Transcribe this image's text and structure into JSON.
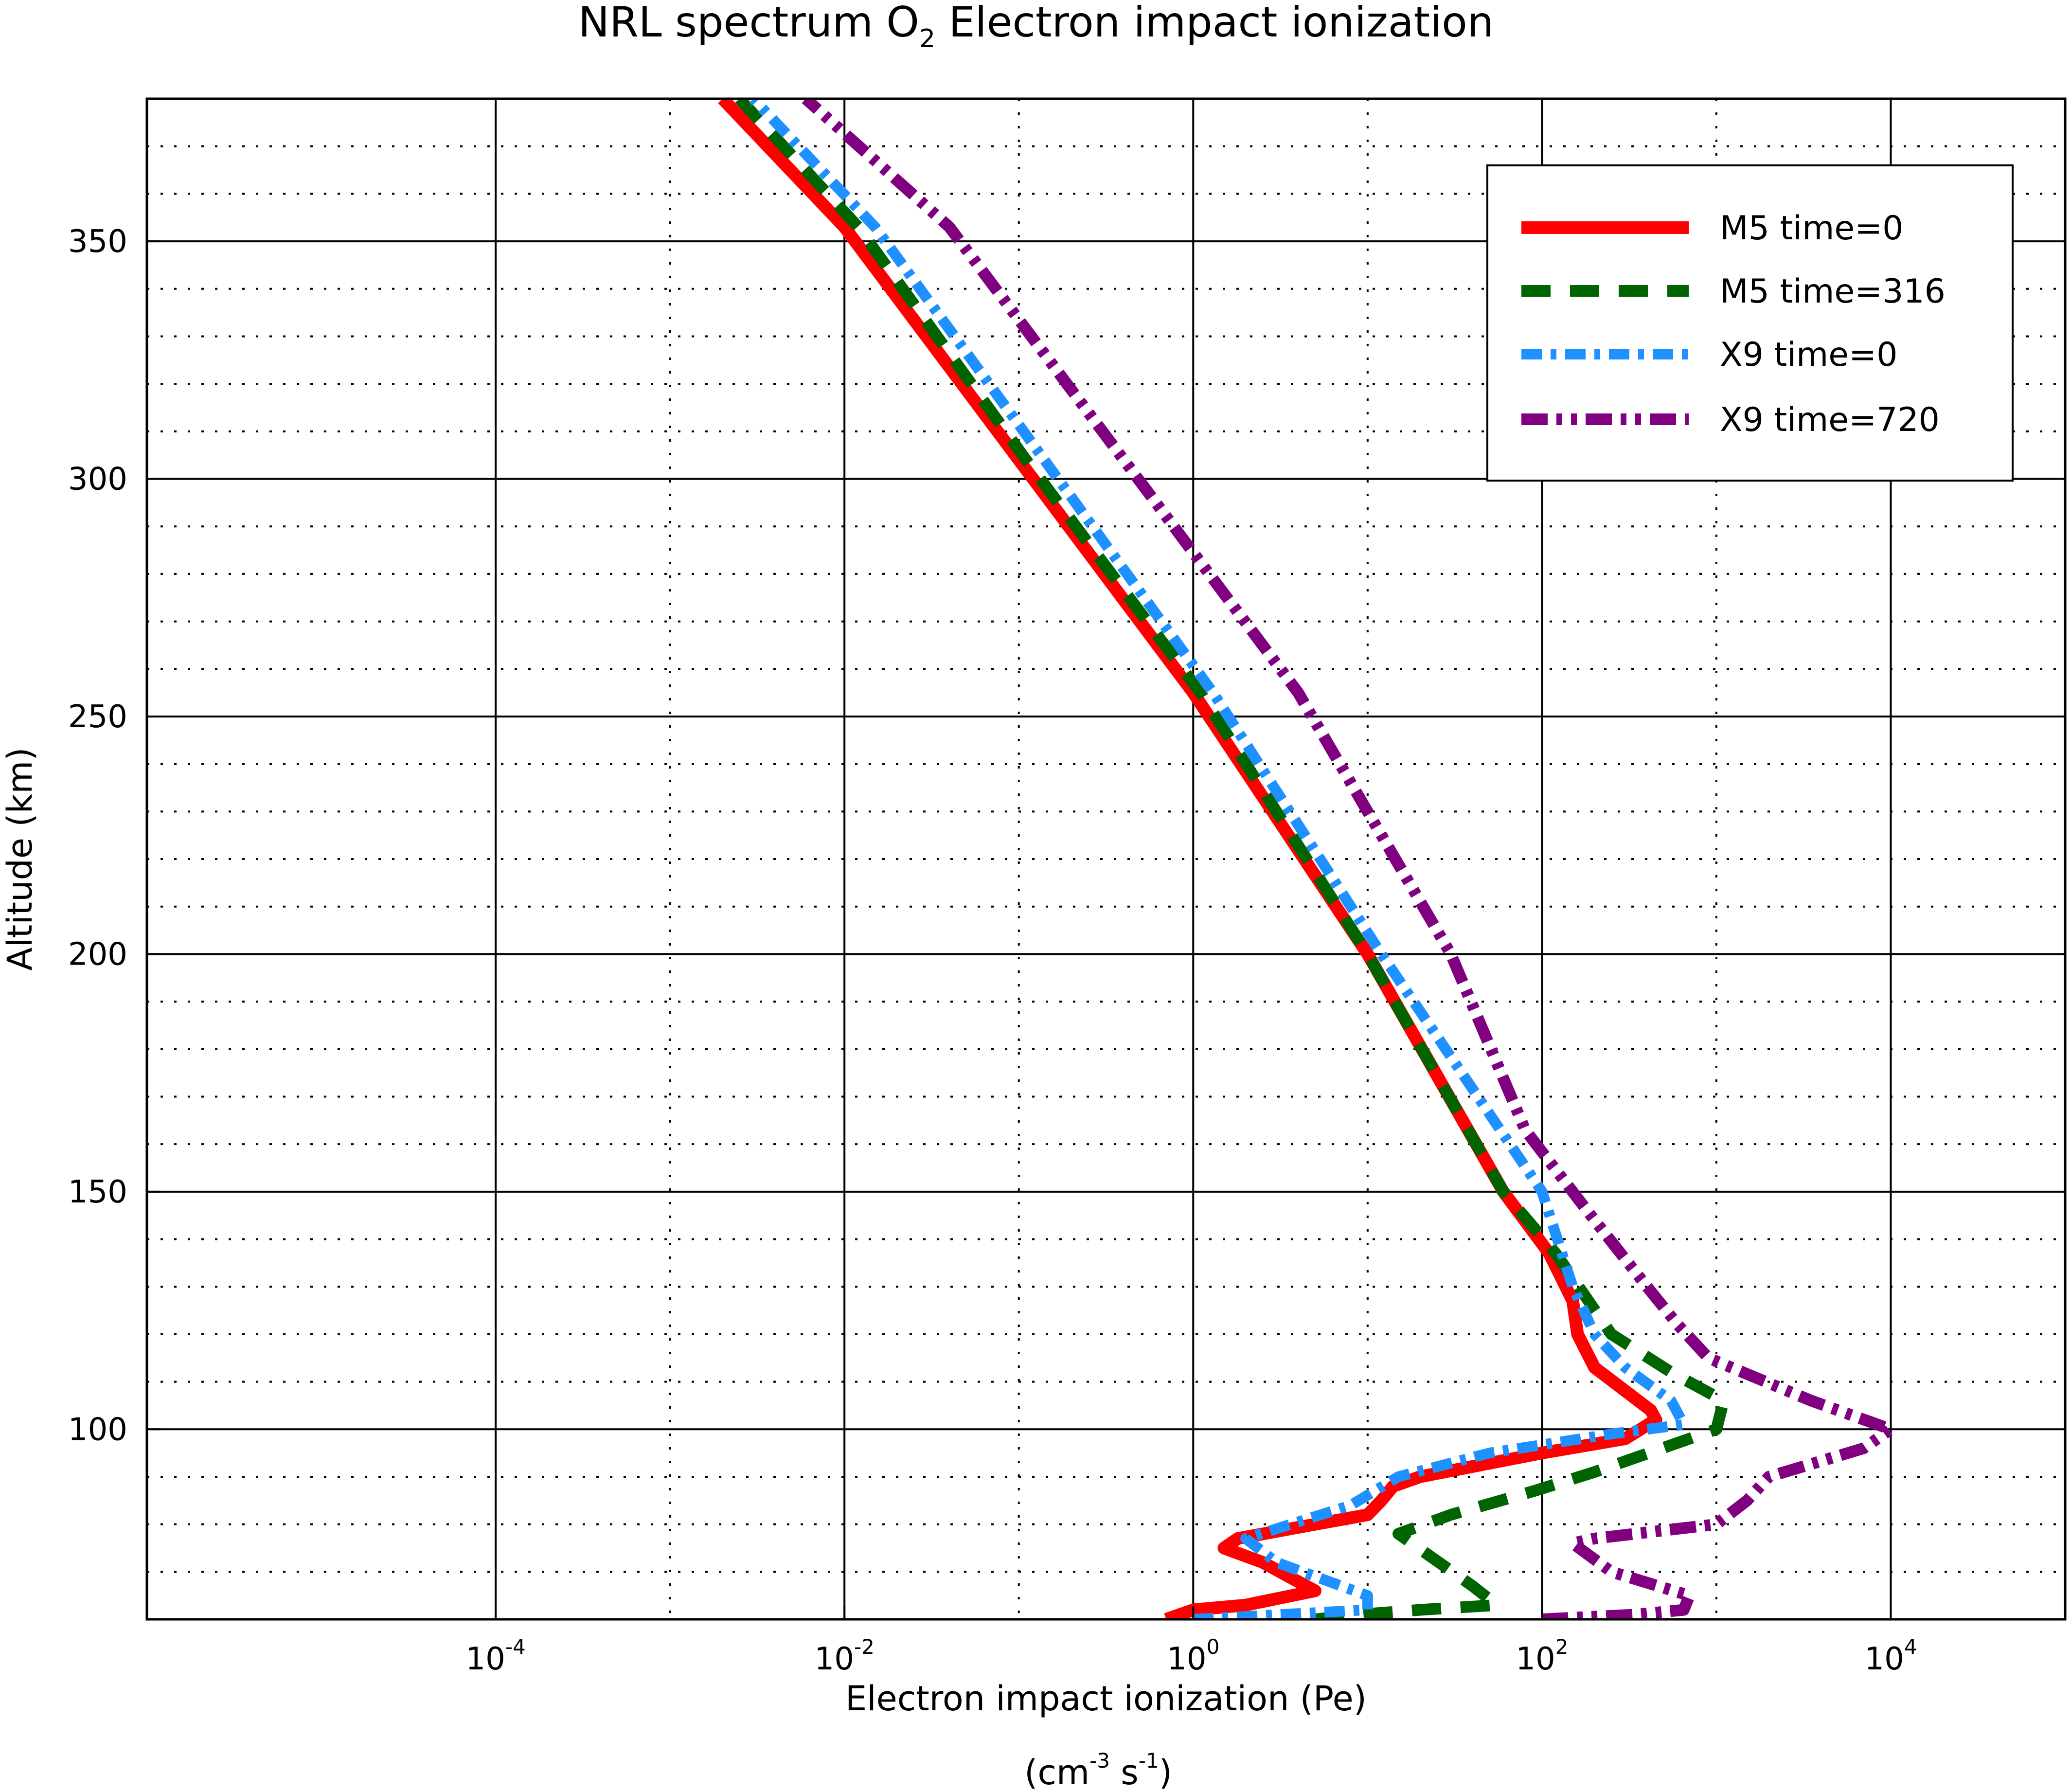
{
  "chart_data": {
    "type": "line",
    "title_main": "NRL spectrum O",
    "title_sub": "2",
    "title_rest": " Electron impact ionization",
    "xlabel": "Electron impact ionization (Pe)",
    "xunit": {
      "cm": "(cm",
      "cm_exp": "-3",
      "s": " s",
      "s_exp": "-1",
      "close": ")"
    },
    "ylabel": "Altitude (km)",
    "xscale": "log",
    "xlim": [
      1e-06,
      100000
    ],
    "ylim": [
      60,
      380
    ],
    "x_major_ticks": [
      {
        "value": 0.0001,
        "base": "10",
        "exp": "-4"
      },
      {
        "value": 0.01,
        "base": "10",
        "exp": "-2"
      },
      {
        "value": 1,
        "base": "10",
        "exp": "0"
      },
      {
        "value": 100,
        "base": "10",
        "exp": "2"
      },
      {
        "value": 10000,
        "base": "10",
        "exp": "4"
      }
    ],
    "x_grid_solid": [
      0.0001,
      0.01,
      1,
      100,
      10000
    ],
    "x_grid_dotted": [
      0.001,
      0.1,
      10,
      1000
    ],
    "y_ticks": [
      {
        "value": 100,
        "label": "100"
      },
      {
        "value": 150,
        "label": "150"
      },
      {
        "value": 200,
        "label": "200"
      },
      {
        "value": 250,
        "label": "250"
      },
      {
        "value": 300,
        "label": "300"
      },
      {
        "value": 350,
        "label": "350"
      }
    ],
    "y_grid_solid": [
      100,
      150,
      200,
      250,
      300,
      350
    ],
    "y_grid_dotted": [
      70,
      80,
      90,
      110,
      120,
      130,
      140,
      160,
      170,
      180,
      190,
      210,
      220,
      230,
      240,
      260,
      270,
      280,
      290,
      310,
      320,
      330,
      340,
      360,
      370
    ],
    "grid": true,
    "legend_position": "top-right",
    "series": [
      {
        "name": "M5 time=0",
        "color": "#ff0000",
        "style": "solid",
        "points": [
          [
            0.7,
            60
          ],
          [
            1.0,
            62
          ],
          [
            2.0,
            63
          ],
          [
            5.0,
            66
          ],
          [
            2.5,
            72
          ],
          [
            1.5,
            75
          ],
          [
            1.8,
            77
          ],
          [
            5.0,
            80
          ],
          [
            10,
            82
          ],
          [
            12,
            85
          ],
          [
            14,
            88
          ],
          [
            20,
            90
          ],
          [
            100,
            95
          ],
          [
            300,
            98
          ],
          [
            450,
            102
          ],
          [
            420,
            104
          ],
          [
            200,
            113
          ],
          [
            160,
            120
          ],
          [
            150,
            127
          ],
          [
            110,
            137
          ],
          [
            60,
            150
          ],
          [
            10,
            200
          ],
          [
            1.0,
            255
          ],
          [
            0.1,
            304
          ],
          [
            0.01,
            353
          ],
          [
            0.002,
            380
          ]
        ]
      },
      {
        "name": "M5 time=316",
        "color": "#006400",
        "style": "dashed",
        "points": [
          [
            5,
            60
          ],
          [
            9,
            61
          ],
          [
            20,
            62
          ],
          [
            55,
            63
          ],
          [
            40,
            67
          ],
          [
            15,
            78
          ],
          [
            30,
            82
          ],
          [
            90,
            87
          ],
          [
            200,
            91
          ],
          [
            1000,
            100
          ],
          [
            1100,
            106
          ],
          [
            550,
            112
          ],
          [
            250,
            120
          ],
          [
            120,
            137
          ],
          [
            60,
            150
          ],
          [
            10,
            200
          ],
          [
            1.1,
            255
          ],
          [
            0.11,
            304
          ],
          [
            0.012,
            353
          ],
          [
            0.0025,
            380
          ]
        ]
      },
      {
        "name": "X9 time=0",
        "color": "#1e90ff",
        "style": "dashdot",
        "points": [
          [
            1.0,
            60
          ],
          [
            10,
            62
          ],
          [
            10,
            65
          ],
          [
            3,
            72
          ],
          [
            2,
            77
          ],
          [
            8,
            84
          ],
          [
            15,
            90
          ],
          [
            50,
            95
          ],
          [
            250,
            99
          ],
          [
            650,
            101
          ],
          [
            550,
            106
          ],
          [
            300,
            113
          ],
          [
            200,
            120
          ],
          [
            150,
            130
          ],
          [
            100,
            150
          ],
          [
            12,
            200
          ],
          [
            1.3,
            255
          ],
          [
            0.14,
            304
          ],
          [
            0.015,
            353
          ],
          [
            0.003,
            380
          ]
        ]
      },
      {
        "name": "X9 time=720",
        "color": "#800080",
        "style": "dashdotdot",
        "points": [
          [
            100,
            60
          ],
          [
            350,
            61
          ],
          [
            650,
            62
          ],
          [
            700,
            65
          ],
          [
            250,
            70
          ],
          [
            150,
            76
          ],
          [
            200,
            77
          ],
          [
            1000,
            80
          ],
          [
            1500,
            85
          ],
          [
            2000,
            90
          ],
          [
            7000,
            96
          ],
          [
            10000,
            100
          ],
          [
            3500,
            106
          ],
          [
            900,
            115
          ],
          [
            600,
            122
          ],
          [
            400,
            130
          ],
          [
            200,
            144
          ],
          [
            80,
            163
          ],
          [
            30,
            200
          ],
          [
            4,
            255
          ],
          [
            0.4,
            304
          ],
          [
            0.04,
            353
          ],
          [
            0.006,
            380
          ]
        ]
      }
    ]
  }
}
